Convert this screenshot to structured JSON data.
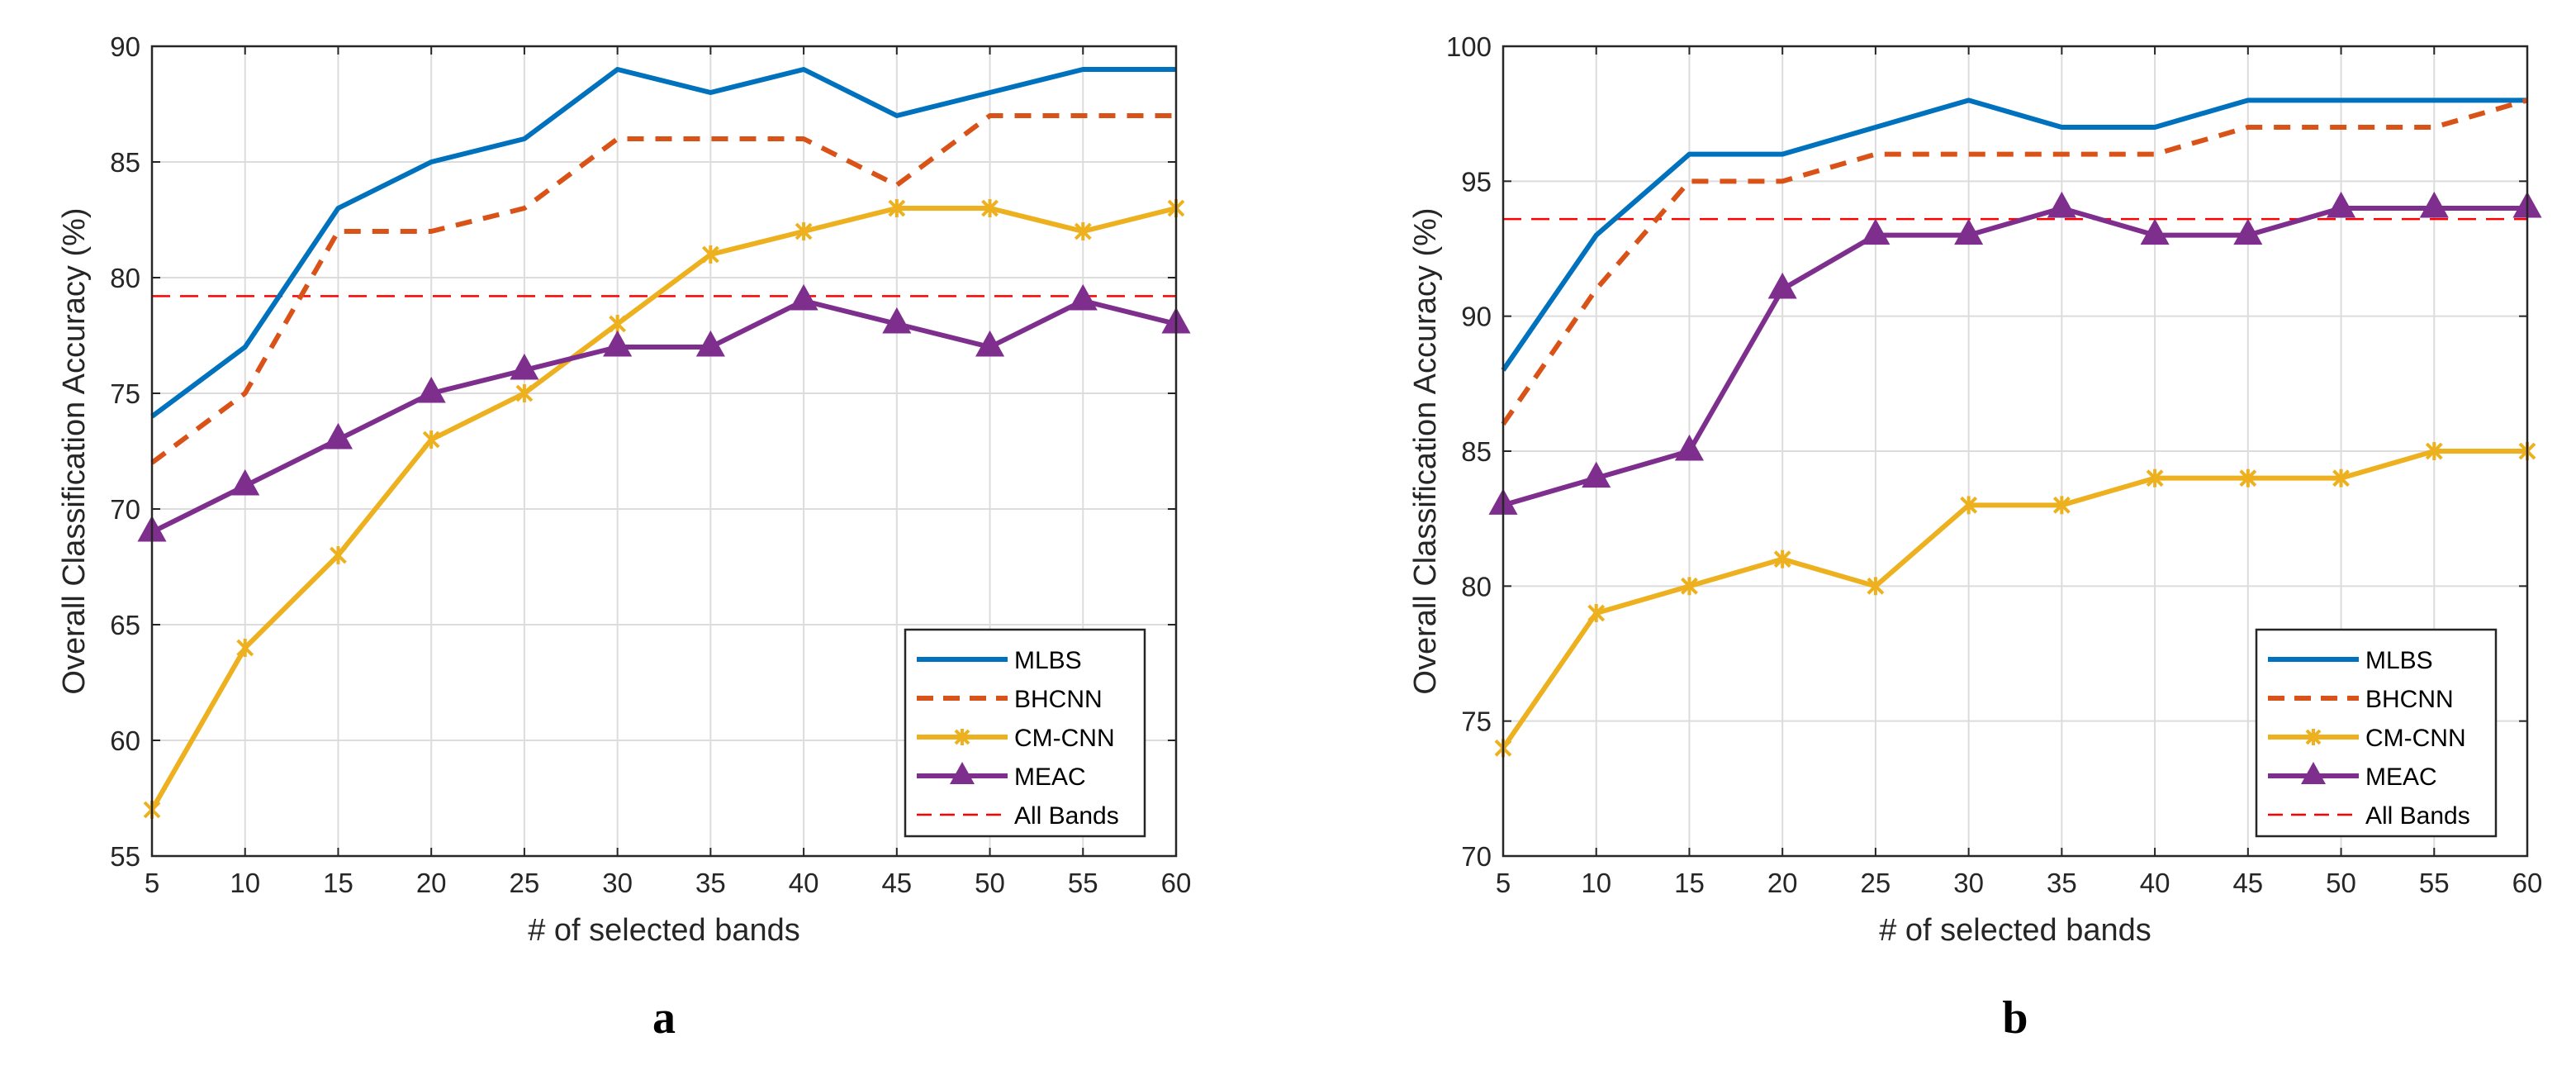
{
  "chart_data": [
    {
      "type": "line",
      "panel_label": "a",
      "xlabel": "# of selected bands",
      "ylabel": "Overall Classification Accuracy (%)",
      "xlim": [
        5,
        60
      ],
      "ylim": [
        55,
        90
      ],
      "xticks": [
        5,
        10,
        15,
        20,
        25,
        30,
        35,
        40,
        45,
        50,
        55,
        60
      ],
      "yticks": [
        55,
        60,
        65,
        70,
        75,
        80,
        85,
        90
      ],
      "grid": true,
      "legend_position": "bottom-right",
      "x": [
        5,
        10,
        15,
        20,
        25,
        30,
        35,
        40,
        45,
        50,
        55,
        60
      ],
      "series": [
        {
          "name": "MLBS",
          "color": "#0072BD",
          "style": "solid",
          "marker": "none",
          "values": [
            74,
            77,
            83,
            85,
            86,
            89,
            88,
            89,
            87,
            88,
            89,
            89
          ]
        },
        {
          "name": "BHCNN",
          "color": "#D95319",
          "style": "dashed",
          "marker": "none",
          "values": [
            72,
            75,
            82,
            82,
            83,
            86,
            86,
            86,
            84,
            87,
            87,
            87
          ]
        },
        {
          "name": "CM-CNN",
          "color": "#EDB120",
          "style": "solid",
          "marker": "asterisk",
          "values": [
            57,
            64,
            68,
            73,
            75,
            78,
            81,
            82,
            83,
            83,
            82,
            83
          ]
        },
        {
          "name": "MEAC",
          "color": "#7E2F8E",
          "style": "solid",
          "marker": "triangle",
          "values": [
            69,
            71,
            73,
            75,
            76,
            77,
            77,
            79,
            78,
            77,
            79,
            78
          ]
        }
      ],
      "reference": {
        "name": "All Bands",
        "color": "#FF0000",
        "style": "dashed",
        "value": 79.2
      }
    },
    {
      "type": "line",
      "panel_label": "b",
      "xlabel": "# of selected bands",
      "ylabel": "Overall Classification Accuracy (%)",
      "xlim": [
        5,
        60
      ],
      "ylim": [
        70,
        100
      ],
      "xticks": [
        5,
        10,
        15,
        20,
        25,
        30,
        35,
        40,
        45,
        50,
        55,
        60
      ],
      "yticks": [
        70,
        75,
        80,
        85,
        90,
        95,
        100
      ],
      "grid": true,
      "legend_position": "bottom-right",
      "x": [
        5,
        10,
        15,
        20,
        25,
        30,
        35,
        40,
        45,
        50,
        55,
        60
      ],
      "series": [
        {
          "name": "MLBS",
          "color": "#0072BD",
          "style": "solid",
          "marker": "none",
          "values": [
            88,
            93,
            96,
            96,
            97,
            98,
            97,
            97,
            98,
            98,
            98,
            98
          ]
        },
        {
          "name": "BHCNN",
          "color": "#D95319",
          "style": "dashed",
          "marker": "none",
          "values": [
            86,
            91,
            95,
            95,
            96,
            96,
            96,
            96,
            97,
            97,
            97,
            98
          ]
        },
        {
          "name": "CM-CNN",
          "color": "#EDB120",
          "style": "solid",
          "marker": "asterisk",
          "values": [
            74,
            79,
            80,
            81,
            80,
            83,
            83,
            84,
            84,
            84,
            85,
            85
          ]
        },
        {
          "name": "MEAC",
          "color": "#7E2F8E",
          "style": "solid",
          "marker": "triangle",
          "values": [
            83,
            84,
            85,
            91,
            93,
            93,
            94,
            93,
            93,
            94,
            94,
            94
          ]
        }
      ],
      "reference": {
        "name": "All Bands",
        "color": "#FF0000",
        "style": "dashed",
        "value": 93.6
      }
    }
  ]
}
